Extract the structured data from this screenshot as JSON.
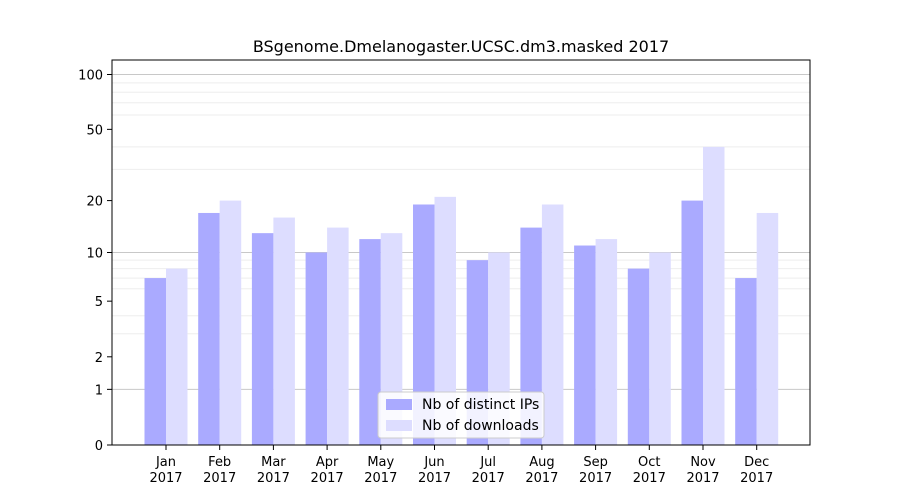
{
  "chart_data": {
    "type": "bar",
    "title": "BSgenome.Dmelanogaster.UCSC.dm3.masked 2017",
    "xlabel": "",
    "ylabel": "",
    "categories": [
      [
        "Jan",
        "2017"
      ],
      [
        "Feb",
        "2017"
      ],
      [
        "Mar",
        "2017"
      ],
      [
        "Apr",
        "2017"
      ],
      [
        "May",
        "2017"
      ],
      [
        "Jun",
        "2017"
      ],
      [
        "Jul",
        "2017"
      ],
      [
        "Aug",
        "2017"
      ],
      [
        "Sep",
        "2017"
      ],
      [
        "Oct",
        "2017"
      ],
      [
        "Nov",
        "2017"
      ],
      [
        "Dec",
        "2017"
      ]
    ],
    "series": [
      {
        "name": "Nb of distinct IPs",
        "color": "#aaaaff",
        "values": [
          7,
          17,
          13,
          10,
          12,
          19,
          9,
          14,
          11,
          8,
          20,
          7
        ]
      },
      {
        "name": "Nb of downloads",
        "color": "#ddddff",
        "values": [
          8,
          20,
          16,
          14,
          13,
          21,
          10,
          19,
          12,
          10,
          40,
          17
        ]
      }
    ],
    "y_scale": "log(1+y)",
    "ylim": [
      0,
      120
    ],
    "y_ticks": [
      0,
      1,
      2,
      5,
      10,
      20,
      50,
      100
    ],
    "grid": true,
    "legend_position": "lower center"
  }
}
